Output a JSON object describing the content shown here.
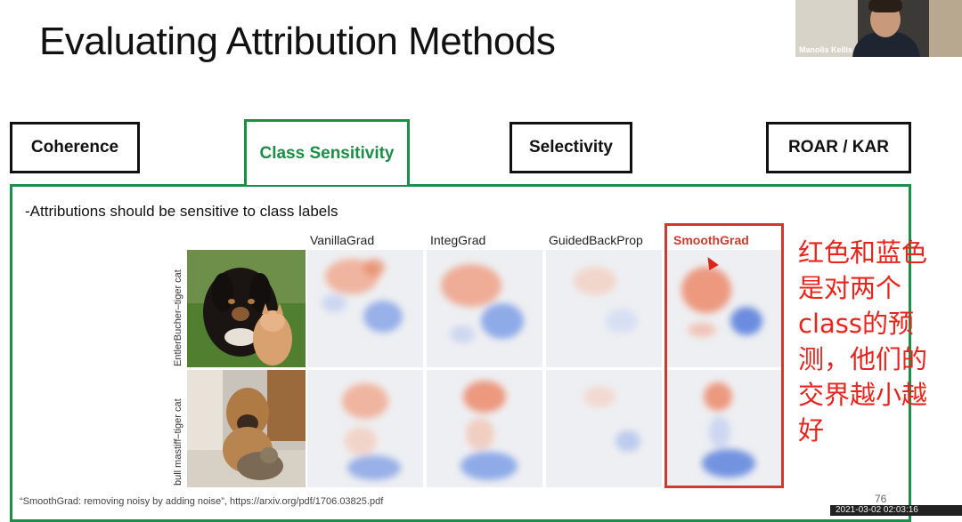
{
  "slide": {
    "title": "Evaluating Attribution Methods",
    "bullet": "-Attributions should be sensitive to class labels",
    "footer": "“SmoothGrad: removing noisy by adding noise”, https://arxiv.org/pdf/1706.03825.pdf",
    "page_number": "76",
    "timestamp": "2021-03-02 02:03:16"
  },
  "webcam": {
    "name": "Manolis Kellis"
  },
  "tabs": [
    {
      "label": "Coherence",
      "active": false
    },
    {
      "label": "Class Sensitivity",
      "active": true
    },
    {
      "label": "Selectivity",
      "active": false
    },
    {
      "label": "ROAR / KAR",
      "active": false
    }
  ],
  "columns": [
    "VanillaGrad",
    "IntegGrad",
    "GuidedBackProp",
    "SmoothGrad"
  ],
  "rows": [
    "EntlerBucher–tiger cat",
    "bull mastiff–tiger cat"
  ],
  "annotation": [
    "红色和蓝色",
    "是对两个",
    "class的预",
    "测，他们的",
    "交界越小越",
    "好"
  ],
  "colors": {
    "accent_green": "#1a8f45",
    "highlight_red": "#d03a2e",
    "annotation_red": "#e8241c"
  }
}
